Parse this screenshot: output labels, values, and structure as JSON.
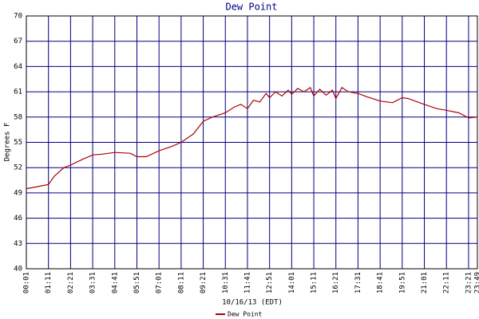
{
  "chart_data": {
    "type": "line",
    "title": "Dew Point",
    "x_label": "10/16/13 (EDT)",
    "y_label": "Degrees F",
    "x": [
      "00:01",
      "00:30",
      "01:11",
      "01:30",
      "02:00",
      "02:21",
      "03:00",
      "03:31",
      "04:00",
      "04:41",
      "05:30",
      "05:51",
      "06:20",
      "07:01",
      "07:40",
      "08:11",
      "08:50",
      "09:21",
      "09:50",
      "10:31",
      "11:00",
      "11:20",
      "11:41",
      "12:00",
      "12:20",
      "12:40",
      "12:51",
      "13:10",
      "13:30",
      "13:50",
      "14:01",
      "14:20",
      "14:40",
      "15:00",
      "15:11",
      "15:30",
      "15:50",
      "16:10",
      "16:21",
      "16:40",
      "17:00",
      "17:31",
      "18:00",
      "18:41",
      "19:20",
      "19:51",
      "20:10",
      "21:01",
      "21:40",
      "22:11",
      "22:50",
      "23:21",
      "23:49"
    ],
    "series": [
      {
        "name": "Dew Point",
        "color": "#b00000",
        "values": [
          49.5,
          49.7,
          50,
          51,
          52,
          52.3,
          53,
          53.5,
          53.6,
          53.8,
          53.7,
          53.3,
          53.3,
          54,
          54.5,
          55,
          56,
          57.5,
          58,
          58.5,
          59.2,
          59.5,
          59,
          60,
          59.8,
          60.8,
          60.3,
          61,
          60.5,
          61.2,
          60.7,
          61.4,
          61,
          61.5,
          60.5,
          61.3,
          60.6,
          61.2,
          60.2,
          61.5,
          61,
          60.8,
          60.4,
          59.9,
          59.7,
          60.3,
          60.2,
          59.5,
          59,
          58.8,
          58.5,
          57.9,
          58
        ]
      }
    ],
    "xlim": [
      "00:01",
      "23:49"
    ],
    "xticks": [
      "00:01",
      "01:11",
      "02:21",
      "03:31",
      "04:41",
      "05:51",
      "07:01",
      "08:11",
      "09:21",
      "10:31",
      "11:41",
      "12:51",
      "14:01",
      "15:11",
      "16:21",
      "17:31",
      "18:41",
      "19:51",
      "21:01",
      "22:11",
      "23:21",
      "23:49"
    ],
    "ylim": [
      40,
      70
    ],
    "yticks": [
      40,
      43,
      46,
      49,
      52,
      55,
      58,
      61,
      64,
      67,
      70
    ],
    "grid": true,
    "grid_color": "#000080",
    "legend": "bottom"
  }
}
